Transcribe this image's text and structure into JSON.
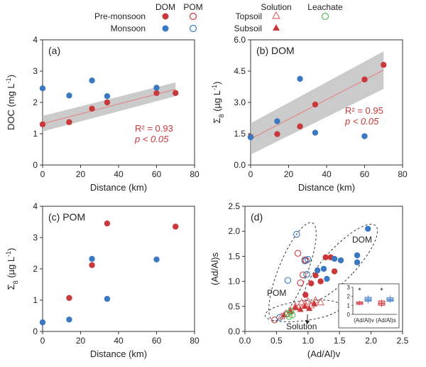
{
  "colors": {
    "pre": "#c9393b",
    "mon": "#3a78c2",
    "sol": "#e06a6a",
    "leach": "#5cb85c",
    "band": "#b9b9b9",
    "fit": "#e08a8a"
  },
  "legend": {
    "col_dom": "DOM",
    "col_pom": "POM",
    "col_solution": "Solution",
    "col_leachate": "Leachate",
    "pre_label": "Pre-monsoon",
    "mon_label": "Monsoon",
    "top_label": "Topsoil",
    "sub_label": "Subsoil"
  },
  "chart_data": [
    {
      "id": "a",
      "type": "scatter",
      "panel_label": "(a)",
      "xlabel": "Distance (km)",
      "ylabel_main": "DOC (mg L",
      "ylabel_sup": "-1",
      "ylabel_end": ")",
      "xlim": [
        0,
        80
      ],
      "ylim": [
        0,
        4
      ],
      "xticks": [
        0,
        20,
        40,
        60,
        80
      ],
      "yticks": [
        0,
        1,
        2,
        3,
        4
      ],
      "series": [
        {
          "name": "Pre-monsoon",
          "x": [
            0,
            14,
            26,
            34,
            60,
            70
          ],
          "y": [
            1.3,
            1.37,
            1.8,
            2.0,
            2.3,
            2.3
          ]
        },
        {
          "name": "Monsoon",
          "x": [
            0,
            14,
            26,
            34,
            60
          ],
          "y": [
            2.45,
            2.22,
            2.7,
            2.2,
            2.47
          ]
        }
      ],
      "fit": {
        "x": [
          0,
          70
        ],
        "y": [
          1.32,
          2.42
        ],
        "band_upper": [
          1.57,
          2.64
        ],
        "band_lower": [
          1.07,
          2.2
        ]
      },
      "r2_text": "R² = 0.93",
      "p_text": "p < 0.05"
    },
    {
      "id": "b",
      "type": "scatter",
      "panel_label": "(b) DOM",
      "xlabel": "Distance (km)",
      "ylabel_main": "Σ",
      "ylabel_sub": "8",
      "ylabel_unit": " (µg L",
      "ylabel_sup": "-1",
      "ylabel_end": ")",
      "xlim": [
        0,
        80
      ],
      "ylim": [
        0,
        6
      ],
      "xticks": [
        0,
        20,
        40,
        60,
        80
      ],
      "yticks": [
        0,
        1.5,
        3,
        4.5,
        6
      ],
      "ytick_labels": [
        "0.0",
        "1.5",
        "3.0",
        "4.5",
        "6.0"
      ],
      "series": [
        {
          "name": "Pre-monsoon",
          "x": [
            0,
            14,
            26,
            34,
            60,
            70
          ],
          "y": [
            1.35,
            1.48,
            1.85,
            2.9,
            4.1,
            4.8
          ]
        },
        {
          "name": "Monsoon",
          "x": [
            0,
            14,
            26,
            34,
            60
          ],
          "y": [
            1.33,
            2.1,
            4.13,
            1.55,
            1.38
          ]
        }
      ],
      "fit": {
        "x": [
          0,
          70
        ],
        "y": [
          1.25,
          4.55
        ],
        "band_upper": [
          2.0,
          5.45
        ],
        "band_lower": [
          0.5,
          3.65
        ]
      },
      "r2_text": "R² = 0.95",
      "p_text": "p < 0.05"
    },
    {
      "id": "c",
      "type": "scatter",
      "panel_label": "(c) POM",
      "xlabel": "Distance (km)",
      "ylabel_main": "Σ",
      "ylabel_sub": "8",
      "ylabel_unit": " (µg L",
      "ylabel_sup": "-1",
      "ylabel_end": ")",
      "xlim": [
        0,
        80
      ],
      "ylim": [
        0,
        4
      ],
      "xticks": [
        0,
        20,
        40,
        60,
        80
      ],
      "yticks": [
        0,
        1,
        2,
        3,
        4
      ],
      "series": [
        {
          "name": "Pre-monsoon",
          "x": [
            14,
            26,
            34,
            70
          ],
          "y": [
            1.07,
            2.12,
            3.45,
            3.35
          ]
        },
        {
          "name": "Monsoon",
          "x": [
            0,
            14,
            26,
            34,
            60
          ],
          "y": [
            0.29,
            0.38,
            2.32,
            1.04,
            2.3
          ]
        }
      ]
    },
    {
      "id": "d",
      "type": "scatter",
      "panel_label": "(d)",
      "xlabel": "(Ad/Al)v",
      "ylabel": "(Ad/Al)s",
      "xlim": [
        0,
        2.5
      ],
      "ylim": [
        0,
        2.5
      ],
      "xticks": [
        0,
        0.5,
        1,
        1.5,
        2,
        2.5
      ],
      "xtick_labels": [
        "0.0",
        "0.5",
        "1.0",
        "1.5",
        "2.0",
        "2.5"
      ],
      "yticks": [
        0,
        0.5,
        1,
        1.5,
        2,
        2.5
      ],
      "ytick_labels": [
        "0.0",
        "0.5",
        "1.0",
        "1.5",
        "2.0",
        "2.5"
      ],
      "series": [
        {
          "name": "DOM Pre-monsoon",
          "x": [
            0.96,
            1.05,
            1.12,
            1.2,
            1.28,
            1.36,
            1.42
          ],
          "y": [
            0.73,
            0.96,
            1.12,
            1.0,
            1.48,
            1.48,
            1.2
          ]
        },
        {
          "name": "DOM Monsoon",
          "x": [
            1.15,
            1.25,
            1.3,
            1.42,
            1.52,
            1.78,
            1.78,
            1.95
          ],
          "y": [
            1.22,
            1.25,
            1.05,
            1.45,
            1.42,
            1.52,
            1.38,
            2.05
          ]
        },
        {
          "name": "POM Pre-monsoon",
          "x": [
            0.47,
            0.84,
            0.88,
            0.92,
            0.95,
            0.97
          ],
          "y": [
            0.23,
            1.56,
            0.97,
            1.13,
            1.43,
            1.42
          ]
        },
        {
          "name": "POM Monsoon",
          "x": [
            0.55,
            0.68,
            0.82,
            0.95,
            0.98,
            1.0
          ],
          "y": [
            0.28,
            1.02,
            1.94,
            1.41,
            1.14,
            1.44
          ]
        },
        {
          "name": "Solution Topsoil",
          "x": [
            0.58,
            0.65,
            0.72,
            0.8,
            0.85,
            0.9,
            0.95,
            1.0,
            1.05,
            1.12,
            1.2
          ],
          "y": [
            0.3,
            0.36,
            0.42,
            0.5,
            0.48,
            0.58,
            0.55,
            0.6,
            0.52,
            0.62,
            0.58
          ]
        },
        {
          "name": "Solution Subsoil",
          "x": [
            0.62,
            0.72,
            0.8,
            0.88,
            0.95,
            1.02,
            1.1
          ],
          "y": [
            0.33,
            0.4,
            0.48,
            0.44,
            0.5,
            0.46,
            0.55
          ]
        },
        {
          "name": "Leachate",
          "x": [
            0.68,
            0.7,
            0.73,
            0.75
          ],
          "y": [
            0.35,
            0.3,
            0.4,
            0.33
          ]
        }
      ],
      "groups": {
        "pom": "POM",
        "dom": "DOM",
        "solution": "Solution"
      },
      "inset": {
        "categories": [
          "(Ad/Al)v",
          "(Ad/Al)s"
        ],
        "ylim": [
          0,
          3
        ],
        "yticks": [
          0,
          1,
          2,
          3
        ],
        "boxes": [
          {
            "group": "(Ad/Al)v",
            "color": "pre",
            "low": 1.0,
            "q1": 1.1,
            "med": 1.25,
            "q3": 1.4,
            "high": 1.5
          },
          {
            "group": "(Ad/Al)v",
            "color": "mon",
            "low": 1.2,
            "q1": 1.45,
            "med": 1.6,
            "q3": 1.9,
            "high": 2.1
          },
          {
            "group": "(Ad/Al)s",
            "color": "pre",
            "low": 0.8,
            "q1": 1.0,
            "med": 1.2,
            "q3": 1.5,
            "high": 1.65
          },
          {
            "group": "(Ad/Al)s",
            "color": "mon",
            "low": 1.3,
            "q1": 1.45,
            "med": 1.6,
            "q3": 1.85,
            "high": 2.1
          }
        ],
        "star": "*"
      }
    }
  ]
}
